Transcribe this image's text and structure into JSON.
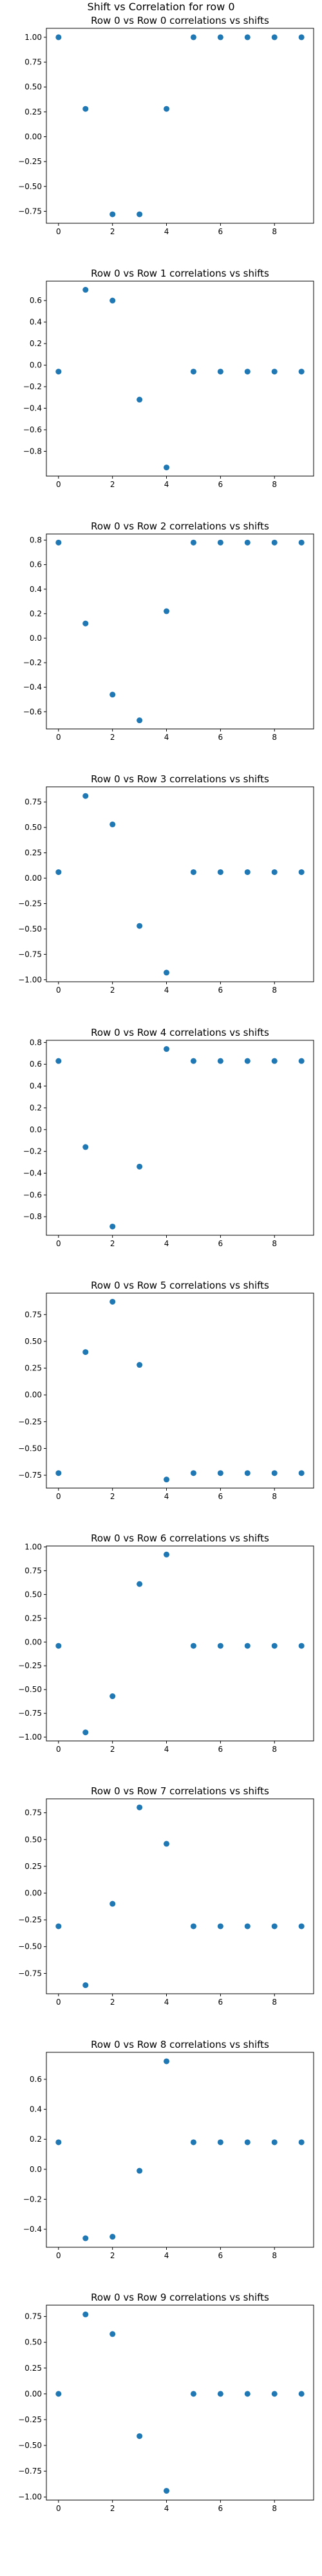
{
  "figure": {
    "suptitle": "Shift vs Correlation for row 0"
  },
  "chart_data": [
    {
      "type": "scatter",
      "title": "Row 0 vs Row 0 correlations vs shifts",
      "xlabel": "",
      "ylabel": "",
      "color": "#1f77b4",
      "x": [
        0,
        1,
        2,
        3,
        4,
        5,
        6,
        7,
        8,
        9
      ],
      "y": [
        1.0,
        0.28,
        -0.78,
        -0.78,
        0.28,
        1.0,
        1.0,
        1.0,
        1.0,
        1.0
      ],
      "xlim": [
        -0.45,
        9.45
      ],
      "ylim": [
        -0.87,
        1.09
      ],
      "xticks": [
        0,
        2,
        4,
        6,
        8
      ],
      "yticks": [
        -0.75,
        -0.5,
        -0.25,
        0.0,
        0.25,
        0.5,
        0.75,
        1.0
      ],
      "yticklabels": [
        "−0.75",
        "−0.50",
        "−0.25",
        "0.00",
        "0.25",
        "0.50",
        "0.75",
        "1.00"
      ]
    },
    {
      "type": "scatter",
      "title": "Row 0 vs Row 1 correlations vs shifts",
      "xlabel": "",
      "ylabel": "",
      "color": "#1f77b4",
      "x": [
        0,
        1,
        2,
        3,
        4,
        5,
        6,
        7,
        8,
        9
      ],
      "y": [
        -0.06,
        0.7,
        0.6,
        -0.32,
        -0.95,
        -0.06,
        -0.06,
        -0.06,
        -0.06,
        -0.06
      ],
      "xlim": [
        -0.45,
        9.45
      ],
      "ylim": [
        -1.03,
        0.78
      ],
      "xticks": [
        0,
        2,
        4,
        6,
        8
      ],
      "yticks": [
        -0.8,
        -0.6,
        -0.4,
        -0.2,
        0.0,
        0.2,
        0.4,
        0.6
      ],
      "yticklabels": [
        "−0.8",
        "−0.6",
        "−0.4",
        "−0.2",
        "0.0",
        "0.2",
        "0.4",
        "0.6"
      ]
    },
    {
      "type": "scatter",
      "title": "Row 0 vs Row 2 correlations vs shifts",
      "xlabel": "",
      "ylabel": "",
      "color": "#1f77b4",
      "x": [
        0,
        1,
        2,
        3,
        4,
        5,
        6,
        7,
        8,
        9
      ],
      "y": [
        0.78,
        0.12,
        -0.46,
        -0.67,
        0.22,
        0.78,
        0.78,
        0.78,
        0.78,
        0.78
      ],
      "xlim": [
        -0.45,
        9.45
      ],
      "ylim": [
        -0.74,
        0.85
      ],
      "xticks": [
        0,
        2,
        4,
        6,
        8
      ],
      "yticks": [
        -0.6,
        -0.4,
        -0.2,
        0.0,
        0.2,
        0.4,
        0.6,
        0.8
      ],
      "yticklabels": [
        "−0.6",
        "−0.4",
        "−0.2",
        "0.0",
        "0.2",
        "0.4",
        "0.6",
        "0.8"
      ]
    },
    {
      "type": "scatter",
      "title": "Row 0 vs Row 3 correlations vs shifts",
      "xlabel": "",
      "ylabel": "",
      "color": "#1f77b4",
      "x": [
        0,
        1,
        2,
        3,
        4,
        5,
        6,
        7,
        8,
        9
      ],
      "y": [
        0.06,
        0.81,
        0.53,
        -0.47,
        -0.93,
        0.06,
        0.06,
        0.06,
        0.06,
        0.06
      ],
      "xlim": [
        -0.45,
        9.45
      ],
      "ylim": [
        -1.02,
        0.9
      ],
      "xticks": [
        0,
        2,
        4,
        6,
        8
      ],
      "yticks": [
        -1.0,
        -0.75,
        -0.5,
        -0.25,
        0.0,
        0.25,
        0.5,
        0.75
      ],
      "yticklabels": [
        "−1.00",
        "−0.75",
        "−0.50",
        "−0.25",
        "0.00",
        "0.25",
        "0.50",
        "0.75"
      ]
    },
    {
      "type": "scatter",
      "title": "Row 0 vs Row 4 correlations vs shifts",
      "xlabel": "",
      "ylabel": "",
      "color": "#1f77b4",
      "x": [
        0,
        1,
        2,
        3,
        4,
        5,
        6,
        7,
        8,
        9
      ],
      "y": [
        0.63,
        -0.16,
        -0.89,
        -0.34,
        0.74,
        0.63,
        0.63,
        0.63,
        0.63,
        0.63
      ],
      "xlim": [
        -0.45,
        9.45
      ],
      "ylim": [
        -0.97,
        0.82
      ],
      "xticks": [
        0,
        2,
        4,
        6,
        8
      ],
      "yticks": [
        -0.8,
        -0.6,
        -0.4,
        -0.2,
        0.0,
        0.2,
        0.4,
        0.6,
        0.8
      ],
      "yticklabels": [
        "−0.8",
        "−0.6",
        "−0.4",
        "−0.2",
        "0.0",
        "0.2",
        "0.4",
        "0.6",
        "0.8"
      ]
    },
    {
      "type": "scatter",
      "title": "Row 0 vs Row 5 correlations vs shifts",
      "xlabel": "",
      "ylabel": "",
      "color": "#1f77b4",
      "x": [
        0,
        1,
        2,
        3,
        4,
        5,
        6,
        7,
        8,
        9
      ],
      "y": [
        -0.73,
        0.4,
        0.87,
        0.28,
        -0.79,
        -0.73,
        -0.73,
        -0.73,
        -0.73,
        -0.73
      ],
      "xlim": [
        -0.45,
        9.45
      ],
      "ylim": [
        -0.87,
        0.95
      ],
      "xticks": [
        0,
        2,
        4,
        6,
        8
      ],
      "yticks": [
        -0.75,
        -0.5,
        -0.25,
        0.0,
        0.25,
        0.5,
        0.75
      ],
      "yticklabels": [
        "−0.75",
        "−0.50",
        "−0.25",
        "0.00",
        "0.25",
        "0.50",
        "0.75"
      ]
    },
    {
      "type": "scatter",
      "title": "Row 0 vs Row 6 correlations vs shifts",
      "xlabel": "",
      "ylabel": "",
      "color": "#1f77b4",
      "x": [
        0,
        1,
        2,
        3,
        4,
        5,
        6,
        7,
        8,
        9
      ],
      "y": [
        -0.04,
        -0.95,
        -0.57,
        0.61,
        0.92,
        -0.04,
        -0.04,
        -0.04,
        -0.04,
        -0.04
      ],
      "xlim": [
        -0.45,
        9.45
      ],
      "ylim": [
        -1.04,
        1.01
      ],
      "xticks": [
        0,
        2,
        4,
        6,
        8
      ],
      "yticks": [
        -1.0,
        -0.75,
        -0.5,
        -0.25,
        0.0,
        0.25,
        0.5,
        0.75,
        1.0
      ],
      "yticklabels": [
        "−1.00",
        "−0.75",
        "−0.50",
        "−0.25",
        "0.00",
        "0.25",
        "0.50",
        "0.75",
        "1.00"
      ]
    },
    {
      "type": "scatter",
      "title": "Row 0 vs Row 7 correlations vs shifts",
      "xlabel": "",
      "ylabel": "",
      "color": "#1f77b4",
      "x": [
        0,
        1,
        2,
        3,
        4,
        5,
        6,
        7,
        8,
        9
      ],
      "y": [
        -0.31,
        -0.86,
        -0.1,
        0.8,
        0.46,
        -0.31,
        -0.31,
        -0.31,
        -0.31,
        -0.31
      ],
      "xlim": [
        -0.45,
        9.45
      ],
      "ylim": [
        -0.94,
        0.88
      ],
      "xticks": [
        0,
        2,
        4,
        6,
        8
      ],
      "yticks": [
        -0.75,
        -0.5,
        -0.25,
        0.0,
        0.25,
        0.5,
        0.75
      ],
      "yticklabels": [
        "−0.75",
        "−0.50",
        "−0.25",
        "0.00",
        "0.25",
        "0.50",
        "0.75"
      ]
    },
    {
      "type": "scatter",
      "title": "Row 0 vs Row 8 correlations vs shifts",
      "xlabel": "",
      "ylabel": "",
      "color": "#1f77b4",
      "x": [
        0,
        1,
        2,
        3,
        4,
        5,
        6,
        7,
        8,
        9
      ],
      "y": [
        0.18,
        -0.46,
        -0.45,
        -0.01,
        0.72,
        0.18,
        0.18,
        0.18,
        0.18,
        0.18
      ],
      "xlim": [
        -0.45,
        9.45
      ],
      "ylim": [
        -0.52,
        0.78
      ],
      "xticks": [
        0,
        2,
        4,
        6,
        8
      ],
      "yticks": [
        -0.4,
        -0.2,
        0.0,
        0.2,
        0.4,
        0.6
      ],
      "yticklabels": [
        "−0.4",
        "−0.2",
        "0.0",
        "0.2",
        "0.4",
        "0.6"
      ]
    },
    {
      "type": "scatter",
      "title": "Row 0 vs Row 9 correlations vs shifts",
      "xlabel": "",
      "ylabel": "",
      "color": "#1f77b4",
      "x": [
        0,
        1,
        2,
        3,
        4,
        5,
        6,
        7,
        8,
        9
      ],
      "y": [
        0.0,
        0.77,
        0.58,
        -0.41,
        -0.94,
        0.0,
        0.0,
        0.0,
        0.0,
        0.0
      ],
      "xlim": [
        -0.45,
        9.45
      ],
      "ylim": [
        -1.03,
        0.86
      ],
      "xticks": [
        0,
        2,
        4,
        6,
        8
      ],
      "yticks": [
        -1.0,
        -0.75,
        -0.5,
        -0.25,
        0.0,
        0.25,
        0.5,
        0.75
      ],
      "yticklabels": [
        "−1.00",
        "−0.75",
        "−0.50",
        "−0.25",
        "0.00",
        "0.25",
        "0.50",
        "0.75"
      ]
    }
  ]
}
